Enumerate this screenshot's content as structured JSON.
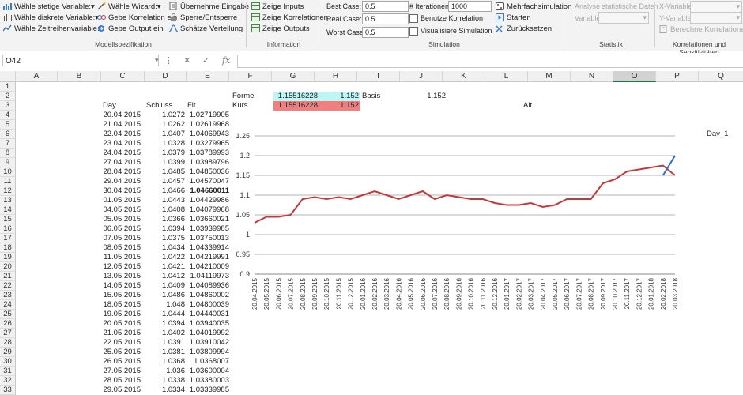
{
  "ribbon": {
    "modell": {
      "items": [
        "Wähle stetige Variable:",
        "Wähle diskrete Variable:",
        "Wähle Zeitreihenvariable:"
      ],
      "wizard": [
        "Wähle Wizard:",
        "Gebe Korrelation ein",
        "Gebe Output ein"
      ],
      "eingabe": [
        "Übernehme Eingabe",
        "Sperre/Entsperre",
        "Schätze Verteilung"
      ],
      "label": "Modellspezifikation"
    },
    "information": {
      "items": [
        "Zeige Inputs",
        "Zeige Korrelationen",
        "Zeige Outputs"
      ],
      "label": "Information"
    },
    "simulation": {
      "best_label": "Best Case:",
      "best_value": "0.5",
      "real_label": "Real Case:",
      "real_value": "0.5",
      "worst_label": "Worst Case:",
      "worst_value": "0.5",
      "iter_label": "# Iterationen:",
      "iter_value": "1000",
      "korr_label": "Benutze Korrelation",
      "vis_label": "Visualisiere Simulation",
      "mehrfach": "Mehrfachsimulation",
      "starten": "Starten",
      "zurueck": "Zurücksetzen",
      "label": "Simulation"
    },
    "statistik": {
      "analyse": "Analyse statistische Daten",
      "variable_label": "Variable",
      "label": "Statistik"
    },
    "korrelationen": {
      "x_label": "X-Variable",
      "y_label": "Y-Variable",
      "berechne": "Berechne Korrelationen",
      "label": "Korrelationen und Sensitivitäten"
    }
  },
  "formula_bar": {
    "name_box": "O42",
    "formula": ""
  },
  "grid": {
    "columns": [
      "A",
      "B",
      "C",
      "D",
      "E",
      "F",
      "G",
      "H",
      "I",
      "J",
      "K",
      "L",
      "M",
      "N",
      "O",
      "P",
      "Q"
    ],
    "selected_column": "O",
    "rows": [
      "1",
      "2",
      "3",
      "4",
      "5",
      "6",
      "7",
      "8",
      "9",
      "10",
      "11",
      "12",
      "13",
      "14",
      "15",
      "16",
      "17",
      "18",
      "19",
      "20",
      "21",
      "22",
      "23",
      "24",
      "25",
      "26",
      "27",
      "28",
      "29",
      "30",
      "31",
      "32",
      "33"
    ],
    "headers": {
      "day": "Day",
      "schluss": "Schluss",
      "fit": "Fit"
    },
    "table": [
      [
        "20.04.2015",
        "1.0272",
        "1.02719905"
      ],
      [
        "21.04.2015",
        "1.0262",
        "1.02619968"
      ],
      [
        "22.04.2015",
        "1.0407",
        "1.04069943"
      ],
      [
        "23.04.2015",
        "1.0328",
        "1.03279965"
      ],
      [
        "24.04.2015",
        "1.0379",
        "1.03789993"
      ],
      [
        "27.04.2015",
        "1.0399",
        "1.03989796"
      ],
      [
        "28.04.2015",
        "1.0485",
        "1.04850036"
      ],
      [
        "29.04.2015",
        "1.0457",
        "1.04570047"
      ],
      [
        "30.04.2015",
        "1.0466",
        "1.04660011"
      ],
      [
        "01.05.2015",
        "1.0443",
        "1.04429986"
      ],
      [
        "04.05.2015",
        "1.0408",
        "1.04079968"
      ],
      [
        "05.05.2015",
        "1.0366",
        "1.03660021"
      ],
      [
        "06.05.2015",
        "1.0394",
        "1.03939985"
      ],
      [
        "07.05.2015",
        "1.0375",
        "1.03750013"
      ],
      [
        "08.05.2015",
        "1.0434",
        "1.04339914"
      ],
      [
        "11.05.2015",
        "1.0422",
        "1.04219991"
      ],
      [
        "12.05.2015",
        "1.0421",
        "1.04210009"
      ],
      [
        "13.05.2015",
        "1.0412",
        "1.04119973"
      ],
      [
        "14.05.2015",
        "1.0409",
        "1.04089936"
      ],
      [
        "15.05.2015",
        "1.0486",
        "1.04860002"
      ],
      [
        "18.05.2015",
        "1.048",
        "1.04800039"
      ],
      [
        "19.05.2015",
        "1.0444",
        "1.04440031"
      ],
      [
        "20.05.2015",
        "1.0394",
        "1.03940035"
      ],
      [
        "21.05.2015",
        "1.0402",
        "1.04019992"
      ],
      [
        "22.05.2015",
        "1.0391",
        "1.03910042"
      ],
      [
        "25.05.2015",
        "1.0381",
        "1.03809994"
      ],
      [
        "26.05.2015",
        "1.0368",
        "1.0368007"
      ],
      [
        "27.05.2015",
        "1.036",
        "1.03600004"
      ],
      [
        "28.05.2015",
        "1.0338",
        "1.03380003"
      ],
      [
        "29.05.2015",
        "1.0334",
        "1.03339985"
      ]
    ],
    "formel_label": "Formel",
    "formel_g": "1.15516228",
    "formel_h": "1.152",
    "basis_label": "Basis",
    "basis_value": "1.152",
    "kurs_label": "Kurs",
    "kurs_g": "1.15516228",
    "kurs_h": "1.152",
    "alt_label": "Alt",
    "day1_label": "Day_1"
  },
  "chart_data": {
    "type": "line",
    "ylim": [
      0.9,
      1.25
    ],
    "yticks": [
      "0.9",
      "0.95",
      "1",
      "1.05",
      "1.1",
      "1.15",
      "1.2",
      "1.25"
    ],
    "x": [
      "20.04.2015",
      "20.05.2015",
      "20.06.2015",
      "20.07.2015",
      "20.08.2015",
      "20.09.2015",
      "20.10.2015",
      "20.11.2015",
      "20.12.2015",
      "20.01.2016",
      "20.02.2016",
      "20.03.2016",
      "20.04.2016",
      "20.05.2016",
      "20.06.2016",
      "20.07.2016",
      "20.08.2016",
      "20.09.2016",
      "20.10.2016",
      "20.11.2016",
      "20.12.2016",
      "20.01.2017",
      "20.02.2017",
      "20.03.2017",
      "20.04.2017",
      "20.05.2017",
      "20.06.2017",
      "20.07.2017",
      "20.08.2017",
      "20.09.2017",
      "20.10.2017",
      "20.11.2017",
      "20.12.2017",
      "20.01.2018",
      "20.02.2018",
      "20.03.2018"
    ],
    "series": [
      {
        "color": "#c0393b",
        "values": [
          1.03,
          1.045,
          1.045,
          1.05,
          1.09,
          1.095,
          1.09,
          1.095,
          1.09,
          1.1,
          1.11,
          1.1,
          1.09,
          1.1,
          1.11,
          1.09,
          1.1,
          1.095,
          1.09,
          1.09,
          1.08,
          1.075,
          1.075,
          1.08,
          1.07,
          1.075,
          1.09,
          1.09,
          1.09,
          1.13,
          1.14,
          1.16,
          1.165,
          1.17,
          1.175,
          1.15
        ]
      },
      {
        "color": "#2f6fbf",
        "values": [
          null,
          null,
          null,
          null,
          null,
          null,
          null,
          null,
          null,
          null,
          null,
          null,
          null,
          null,
          null,
          null,
          null,
          null,
          null,
          null,
          null,
          null,
          null,
          null,
          null,
          null,
          null,
          null,
          null,
          null,
          null,
          null,
          null,
          null,
          1.15,
          1.2
        ]
      }
    ]
  }
}
